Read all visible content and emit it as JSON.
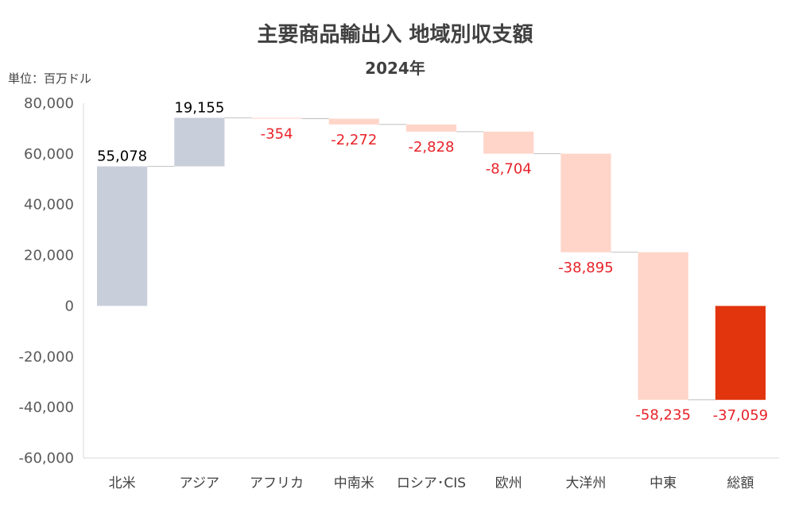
{
  "chart_data": {
    "type": "bar",
    "subtype": "waterfall",
    "title": "主要商品輸出入 地域別収支額",
    "subtitle": "2024年",
    "unit_label": "単位：百万ドル",
    "categories": [
      "北米",
      "アジア",
      "アフリカ",
      "中南米",
      "ロシア･CIS",
      "欧州",
      "大洋州",
      "中東",
      "総額"
    ],
    "values": [
      55078,
      19155,
      -354,
      -2272,
      -2828,
      -8704,
      -38895,
      -58235,
      -37059
    ],
    "value_labels": [
      "55,078",
      "19,155",
      "-354",
      "-2,272",
      "-2,828",
      "-8,704",
      "-38,895",
      "-58,235",
      "-37,059"
    ],
    "total_index": 8,
    "ylim": [
      -60000,
      80000
    ],
    "yticks": [
      80000,
      60000,
      40000,
      20000,
      0,
      -20000,
      -40000,
      -60000
    ],
    "ytick_labels": [
      "80,000",
      "60,000",
      "40,000",
      "20,000",
      "0",
      "-20,000",
      "-40,000",
      "-60,000"
    ],
    "grid": false,
    "legend": "none",
    "colors": {
      "increase": "#c9cedb",
      "decrease": "#ffd5c9",
      "total": "#e2340d",
      "positive_label": "#000000",
      "negative_label": "#e8232a",
      "connector": "#bfbfbf",
      "axis": "#d9d9d9"
    }
  }
}
